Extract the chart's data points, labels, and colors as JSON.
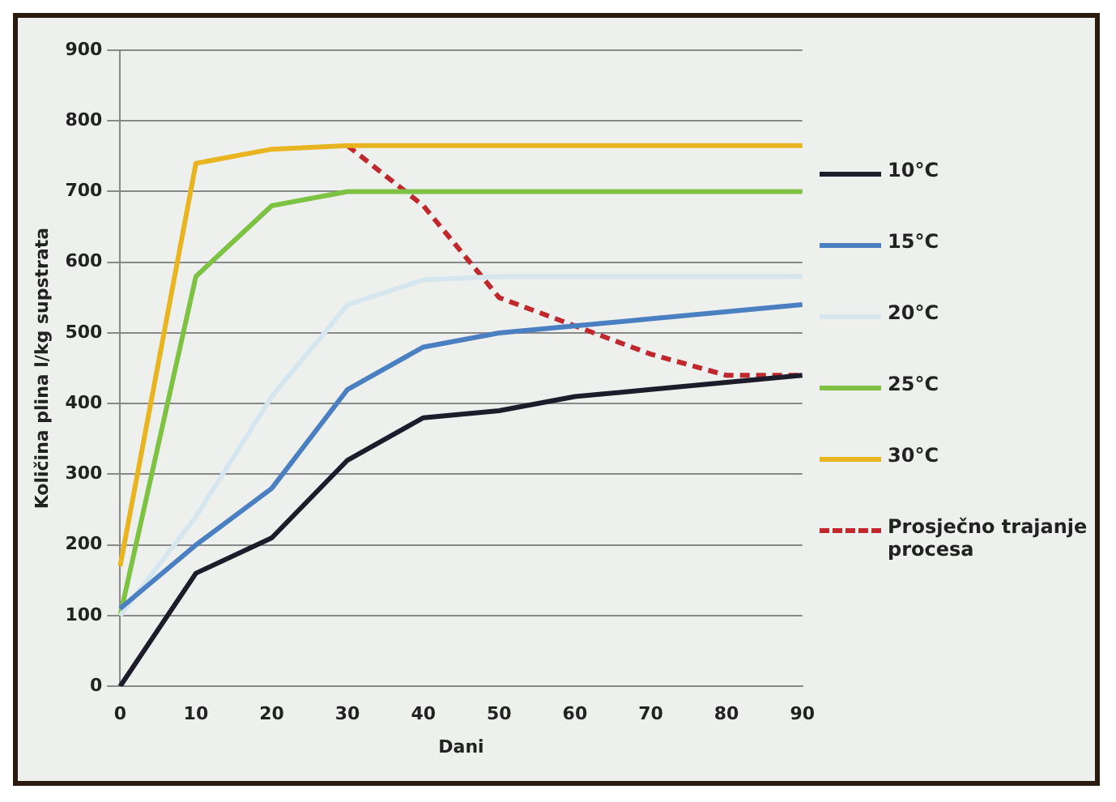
{
  "chart_data": {
    "type": "line",
    "xlabel": "Dani",
    "ylabel": "Količina plina l/kg supstrata",
    "categories": [
      "0",
      "10",
      "20",
      "30",
      "40",
      "50",
      "60",
      "70",
      "80",
      "90"
    ],
    "ylim": [
      0,
      900
    ],
    "yticks": [
      0,
      100,
      200,
      300,
      400,
      500,
      600,
      700,
      800,
      900
    ],
    "grid": "y",
    "legend": "right",
    "marker": "none",
    "series": [
      {
        "name": "10°C",
        "color": "#1c1c2a",
        "values": [
          0,
          160,
          210,
          320,
          380,
          390,
          410,
          420,
          430,
          440
        ]
      },
      {
        "name": "15°C",
        "color": "#4a7fc1",
        "values": [
          110,
          200,
          280,
          420,
          480,
          500,
          510,
          520,
          530,
          540
        ]
      },
      {
        "name": "20°C",
        "color": "#d6e6ee",
        "values": [
          100,
          240,
          410,
          540,
          575,
          580,
          580,
          580,
          580,
          580
        ]
      },
      {
        "name": "25°C",
        "color": "#7dc242",
        "values": [
          100,
          580,
          680,
          700,
          700,
          700,
          700,
          700,
          700,
          700
        ]
      },
      {
        "name": "30°C",
        "color": "#e8b520",
        "values": [
          170,
          740,
          760,
          765,
          765,
          765,
          765,
          765,
          765,
          765
        ]
      },
      {
        "name": "Prosječno trajanje procesa",
        "color": "#c0282d",
        "line_style": "dashed",
        "values": [
          null,
          null,
          null,
          765,
          680,
          550,
          510,
          470,
          440,
          440
        ]
      }
    ]
  }
}
